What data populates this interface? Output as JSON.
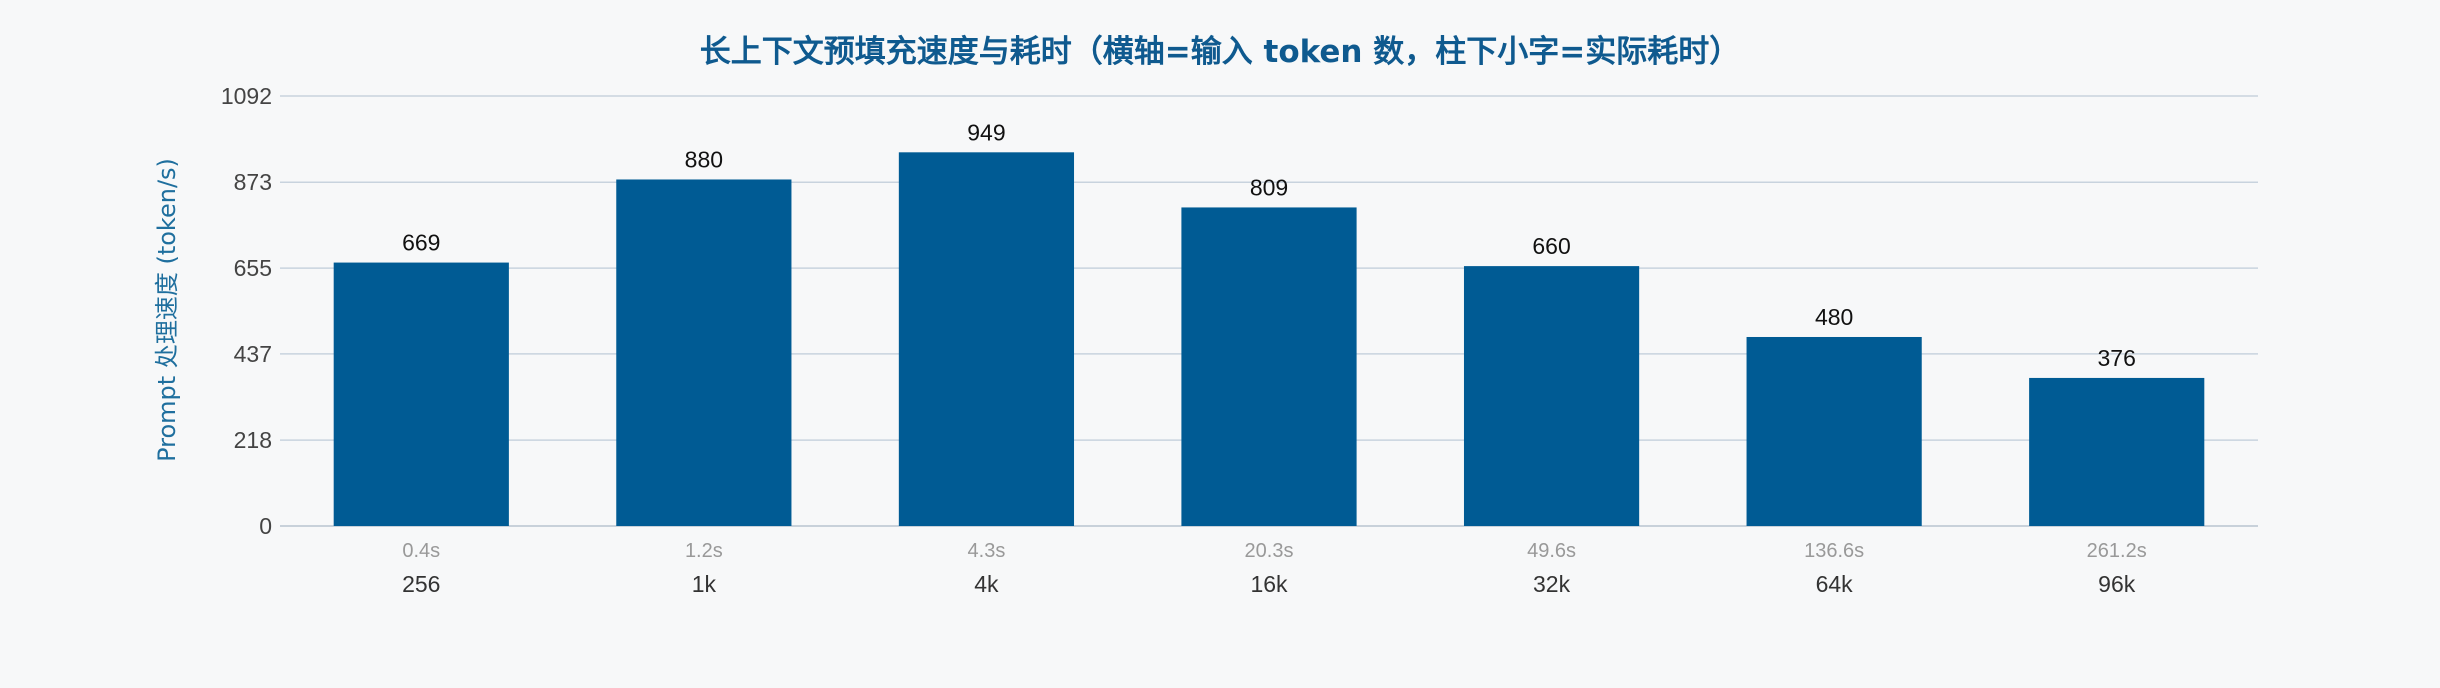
{
  "chart_data": {
    "type": "bar",
    "title": "长上下文预填充速度与耗时（横轴=输入 token 数，柱下小字=实际耗时）",
    "xlabel": "",
    "ylabel": "Prompt 处理速度 (token/s)",
    "categories": [
      "256",
      "1k",
      "4k",
      "16k",
      "32k",
      "64k",
      "96k"
    ],
    "series": [
      {
        "values": [
          669,
          880,
          949,
          809,
          660,
          480,
          376
        ]
      }
    ],
    "time_labels": [
      "0.4s",
      "1.2s",
      "4.3s",
      "20.3s",
      "49.6s",
      "136.6s",
      "261.2s"
    ],
    "ylim": [
      0,
      1092
    ],
    "yticks": [
      0,
      218,
      437,
      655,
      873,
      1092
    ],
    "grid": true,
    "legend": "none",
    "colors": {
      "bar": "#005b94",
      "title": "#0f5a8f",
      "ylabel": "#1f6f9e",
      "grid": "#c8d3de"
    }
  }
}
